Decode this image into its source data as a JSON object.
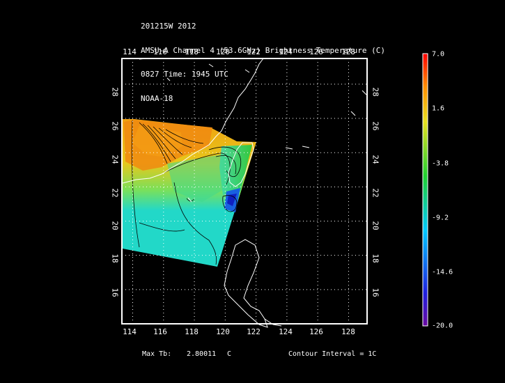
{
  "header": {
    "line1": "201215W 2012",
    "line2": "AMSU-A Channel 4 (53.6GHz) Brightness Temperature (C)",
    "line3": "0827 Time: 1945 UTC",
    "line4": "NOAA-18"
  },
  "map": {
    "lon_range": [
      113.3,
      129.2
    ],
    "lat_range": [
      14.0,
      29.5
    ],
    "lon_ticks": [
      "114",
      "116",
      "118",
      "120",
      "122",
      "124",
      "126",
      "128"
    ],
    "lat_ticks": [
      "16",
      "18",
      "20",
      "22",
      "24",
      "26",
      "28"
    ],
    "grid": true
  },
  "colorbar": {
    "labels": [
      "7.0",
      "1.6",
      "-3.8",
      "-9.2",
      "-14.6",
      "-20.0"
    ],
    "range": [
      -20.0,
      7.0
    ]
  },
  "footer": {
    "max_label": "Max Tb:",
    "max_value": "2.80011",
    "max_unit": "C",
    "contour_label": "Contour Interval = 1C"
  }
}
